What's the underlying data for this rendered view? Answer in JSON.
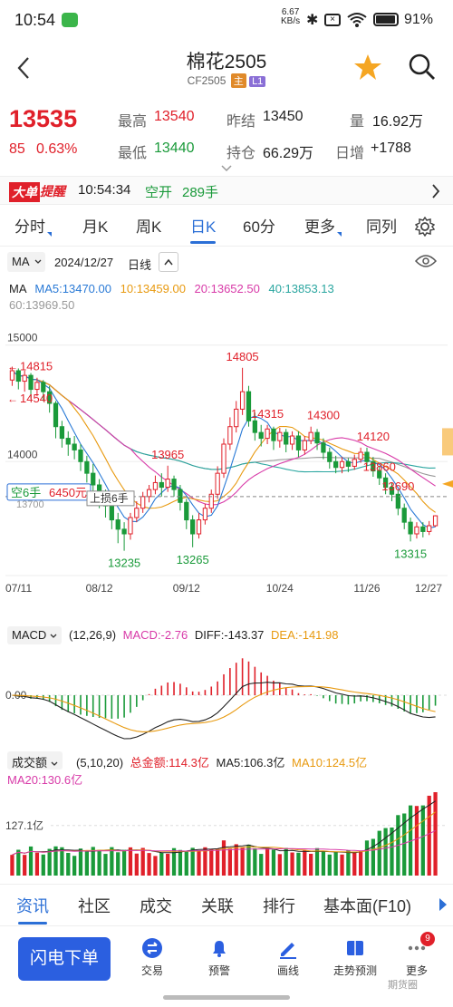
{
  "status_bar": {
    "time": "10:54",
    "net_speed_value": "6.67",
    "net_speed_unit": "KB/s",
    "battery": "91%"
  },
  "header": {
    "title": "棉花2505",
    "code": "CF2505",
    "badge_main": "主",
    "badge_level": "L1"
  },
  "quote": {
    "price": "13535",
    "change": "85",
    "change_pct": "0.63%",
    "high_label": "最高",
    "high": "13540",
    "low_label": "最低",
    "low": "13440",
    "prev_settle_label": "昨结",
    "prev_settle": "13450",
    "open_interest_label": "持仓",
    "open_interest": "66.29万",
    "volume_label": "量",
    "volume": "16.92万",
    "day_increase_label": "日增",
    "day_increase": "+1788"
  },
  "alert": {
    "tag_big": "大单",
    "tag_alert": "提醒",
    "time": "10:54:34",
    "action": "空开",
    "qty": "289手"
  },
  "period_tabs": [
    "分时",
    "月K",
    "周K",
    "日K",
    "60分",
    "更多",
    "同列"
  ],
  "active_period": "日K",
  "chart_header": {
    "indicator": "MA",
    "date": "2024/12/27",
    "period": "日线"
  },
  "ma_legend": {
    "name": "MA",
    "ma5": "MA5:13470.00",
    "ma10": "10:13459.00",
    "ma20": "20:13652.50",
    "ma40": "40:13853.13",
    "ma60": "60:13969.50"
  },
  "colors": {
    "up": "#e0202a",
    "down": "#1a9a3a",
    "ma5": "#222222",
    "ma10": "#e89a10",
    "ma20": "#d83aa8",
    "ma40": "#2aa6a0",
    "ma60": "#999999",
    "accent": "#2b6fd6"
  },
  "chart_data": [
    {
      "type": "candlestick",
      "y_ticks": [
        "15000",
        "14000"
      ],
      "x_ticks": [
        "07/11",
        "08/12",
        "09/12",
        "10/24",
        "11/26",
        "12/27"
      ],
      "annotations": [
        "14815",
        "14540",
        "14805",
        "14315",
        "14300",
        "14120",
        "13965",
        "13860",
        "13690",
        "13315",
        "13265",
        "13235"
      ],
      "position_label": "空6手",
      "position_value": "6450元",
      "position_price": "13700",
      "position_hint": "上损6手",
      "candles": [
        {
          "o": 14700,
          "c": 14780,
          "h": 14815,
          "l": 14650
        },
        {
          "o": 14780,
          "c": 14690,
          "h": 14800,
          "l": 14620
        },
        {
          "o": 14690,
          "c": 14740,
          "h": 14780,
          "l": 14600
        },
        {
          "o": 14740,
          "c": 14620,
          "h": 14760,
          "l": 14540
        },
        {
          "o": 14620,
          "c": 14680,
          "h": 14720,
          "l": 14560
        },
        {
          "o": 14680,
          "c": 14600,
          "h": 14700,
          "l": 14520
        },
        {
          "o": 14600,
          "c": 14500,
          "h": 14650,
          "l": 14420
        },
        {
          "o": 14500,
          "c": 14300,
          "h": 14520,
          "l": 14200
        },
        {
          "o": 14300,
          "c": 14200,
          "h": 14350,
          "l": 14120
        },
        {
          "o": 14200,
          "c": 14150,
          "h": 14260,
          "l": 14050
        },
        {
          "o": 14150,
          "c": 14100,
          "h": 14220,
          "l": 14020
        },
        {
          "o": 14100,
          "c": 14000,
          "h": 14150,
          "l": 13920
        },
        {
          "o": 14000,
          "c": 13900,
          "h": 14050,
          "l": 13820
        },
        {
          "o": 13900,
          "c": 13800,
          "h": 13980,
          "l": 13700
        },
        {
          "o": 13800,
          "c": 13700,
          "h": 13850,
          "l": 13600
        },
        {
          "o": 13700,
          "c": 13620,
          "h": 13760,
          "l": 13520
        },
        {
          "o": 13620,
          "c": 13500,
          "h": 13680,
          "l": 13420
        },
        {
          "o": 13500,
          "c": 13420,
          "h": 13560,
          "l": 13300
        },
        {
          "o": 13420,
          "c": 13380,
          "h": 13480,
          "l": 13235
        },
        {
          "o": 13380,
          "c": 13520,
          "h": 13560,
          "l": 13330
        },
        {
          "o": 13520,
          "c": 13600,
          "h": 13660,
          "l": 13480
        },
        {
          "o": 13600,
          "c": 13700,
          "h": 13740,
          "l": 13560
        },
        {
          "o": 13700,
          "c": 13760,
          "h": 13800,
          "l": 13650
        },
        {
          "o": 13760,
          "c": 13820,
          "h": 13880,
          "l": 13720
        },
        {
          "o": 13820,
          "c": 13780,
          "h": 13900,
          "l": 13700
        },
        {
          "o": 13780,
          "c": 13850,
          "h": 13965,
          "l": 13740
        },
        {
          "o": 13850,
          "c": 13760,
          "h": 13880,
          "l": 13700
        },
        {
          "o": 13760,
          "c": 13650,
          "h": 13800,
          "l": 13580
        },
        {
          "o": 13650,
          "c": 13500,
          "h": 13680,
          "l": 13420
        },
        {
          "o": 13500,
          "c": 13380,
          "h": 13540,
          "l": 13265
        },
        {
          "o": 13380,
          "c": 13500,
          "h": 13560,
          "l": 13340
        },
        {
          "o": 13500,
          "c": 13600,
          "h": 13640,
          "l": 13460
        },
        {
          "o": 13600,
          "c": 13720,
          "h": 13760,
          "l": 13560
        },
        {
          "o": 13720,
          "c": 13900,
          "h": 13960,
          "l": 13680
        },
        {
          "o": 13900,
          "c": 14150,
          "h": 14200,
          "l": 13860
        },
        {
          "o": 14150,
          "c": 14300,
          "h": 14380,
          "l": 14100
        },
        {
          "o": 14300,
          "c": 14450,
          "h": 14520,
          "l": 14250
        },
        {
          "o": 14450,
          "c": 14600,
          "h": 14805,
          "l": 14400
        },
        {
          "o": 14600,
          "c": 14350,
          "h": 14650,
          "l": 14300
        },
        {
          "o": 14350,
          "c": 14250,
          "h": 14420,
          "l": 14180
        },
        {
          "o": 14250,
          "c": 14200,
          "h": 14315,
          "l": 14130
        },
        {
          "o": 14200,
          "c": 14280,
          "h": 14315,
          "l": 14150
        },
        {
          "o": 14280,
          "c": 14180,
          "h": 14300,
          "l": 14100
        },
        {
          "o": 14180,
          "c": 14250,
          "h": 14290,
          "l": 14120
        },
        {
          "o": 14250,
          "c": 14150,
          "h": 14280,
          "l": 14080
        },
        {
          "o": 14150,
          "c": 14220,
          "h": 14260,
          "l": 14100
        },
        {
          "o": 14220,
          "c": 14100,
          "h": 14260,
          "l": 14040
        },
        {
          "o": 14100,
          "c": 14180,
          "h": 14220,
          "l": 14060
        },
        {
          "o": 14180,
          "c": 14250,
          "h": 14300,
          "l": 14150
        },
        {
          "o": 14250,
          "c": 14160,
          "h": 14280,
          "l": 14100
        },
        {
          "o": 14160,
          "c": 14080,
          "h": 14200,
          "l": 14020
        },
        {
          "o": 14080,
          "c": 14000,
          "h": 14120,
          "l": 13940
        },
        {
          "o": 14000,
          "c": 13950,
          "h": 14050,
          "l": 13900
        },
        {
          "o": 13950,
          "c": 14000,
          "h": 14040,
          "l": 13900
        },
        {
          "o": 14000,
          "c": 13960,
          "h": 14030,
          "l": 13910
        },
        {
          "o": 13960,
          "c": 14020,
          "h": 14060,
          "l": 13930
        },
        {
          "o": 14020,
          "c": 14080,
          "h": 14120,
          "l": 13990
        },
        {
          "o": 14080,
          "c": 14000,
          "h": 14120,
          "l": 13960
        },
        {
          "o": 14000,
          "c": 13920,
          "h": 14040,
          "l": 13870
        },
        {
          "o": 13920,
          "c": 13860,
          "h": 13960,
          "l": 13800
        },
        {
          "o": 13860,
          "c": 13780,
          "h": 13900,
          "l": 13720
        },
        {
          "o": 13780,
          "c": 13720,
          "h": 13820,
          "l": 13660
        },
        {
          "o": 13720,
          "c": 13600,
          "h": 13760,
          "l": 13540
        },
        {
          "o": 13600,
          "c": 13480,
          "h": 13640,
          "l": 13420
        },
        {
          "o": 13480,
          "c": 13380,
          "h": 13520,
          "l": 13315
        },
        {
          "o": 13380,
          "c": 13440,
          "h": 13480,
          "l": 13340
        },
        {
          "o": 13440,
          "c": 13400,
          "h": 13480,
          "l": 13350
        },
        {
          "o": 13400,
          "c": 13450,
          "h": 13490,
          "l": 13370
        },
        {
          "o": 13450,
          "c": 13535,
          "h": 13540,
          "l": 13440
        }
      ]
    },
    {
      "type": "bar",
      "name": "MACD",
      "params": "(12,26,9)",
      "macd": "MACD:-2.76",
      "diff": "DIFF:-143.37",
      "dea": "DEA:-141.98",
      "zero_label": "0.00"
    },
    {
      "type": "bar",
      "name": "成交额",
      "params": "(5,10,20)",
      "total": "总金额:114.3亿",
      "ma5": "MA5:106.3亿",
      "ma10": "MA10:124.5亿",
      "ma20": "MA20:130.6亿",
      "y_tick": "127.1亿"
    }
  ],
  "bottom_tabs": [
    "资讯",
    "社区",
    "成交",
    "关联",
    "排行",
    "基本面(F10)"
  ],
  "active_bottom_tab": "资讯",
  "actions": {
    "flash_order": "闪电下单",
    "trade": "交易",
    "alert": "预警",
    "draw": "画线",
    "forecast": "走势预测",
    "more": "更多",
    "more_badge": "9"
  },
  "watermark": "期货圈"
}
